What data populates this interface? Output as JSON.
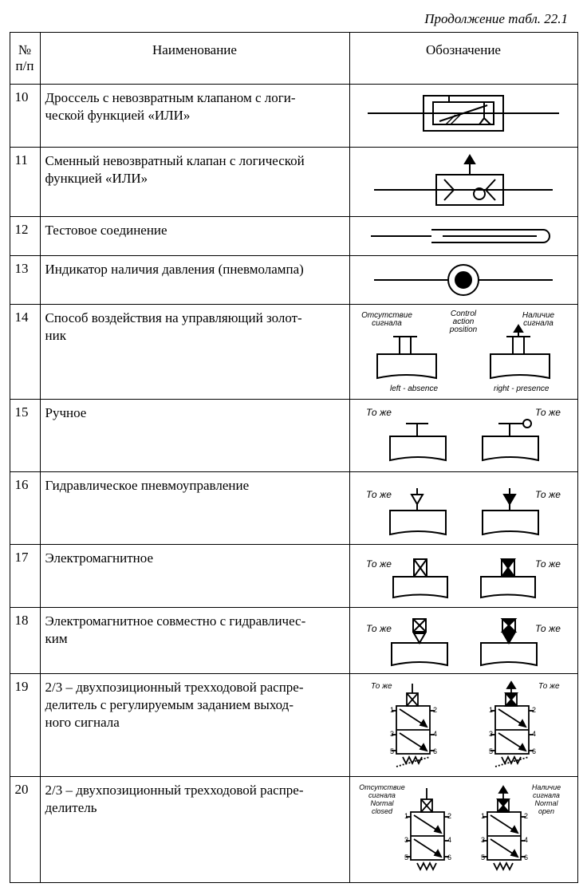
{
  "caption": "Продолжение табл. 22.1",
  "headers": {
    "num": "№ п/п",
    "name": "Наименование",
    "sym": "Обозначение"
  },
  "rows": [
    {
      "n": "10",
      "name": "Дроссель с невозвратным клапаном с логи-\nческой функцией «ИЛИ»"
    },
    {
      "n": "11",
      "name": "Сменный невозвратный клапан с логической функцией «ИЛИ»"
    },
    {
      "n": "12",
      "name": "Тестовое соединение"
    },
    {
      "n": "13",
      "name": "Индикатор наличия давления (пневмолампа)"
    },
    {
      "n": "14",
      "name": "Способ воздействия на управляющий золот-\nник"
    },
    {
      "n": "15",
      "name": "Ручное"
    },
    {
      "n": "16",
      "name": "Гидравлическое пневмоуправление"
    },
    {
      "n": "17",
      "name": "Электромагнитное"
    },
    {
      "n": "18",
      "name": "Электромагнитное совместно с гидравличес-\nким"
    },
    {
      "n": "19",
      "name": "2/3 – двухпозиционный трехходовой распре-\nделитель с регулируемым заданием выход-\nного сигнала"
    },
    {
      "n": "20",
      "name": "2/3 – двухпозиционный трехходовой распре-\nделитель"
    }
  ],
  "labels": {
    "r14": {
      "a": "Отсутствие сигнала",
      "b": "Control action position",
      "c": "Наличие сигнала",
      "d": "left - absence",
      "e": "right - presence"
    },
    "same": "То же",
    "r20": {
      "a": "Отсутствие сигнала Normal closed",
      "b": "Наличие сигнала Normal open"
    }
  },
  "style": {
    "stroke": "#000000",
    "stroke_width": 2,
    "thin": 1.4,
    "bg": "#ffffff",
    "text_color": "#000000",
    "header_fontsize": 17,
    "cell_fontsize": 17,
    "caption_fontsize": 17
  }
}
